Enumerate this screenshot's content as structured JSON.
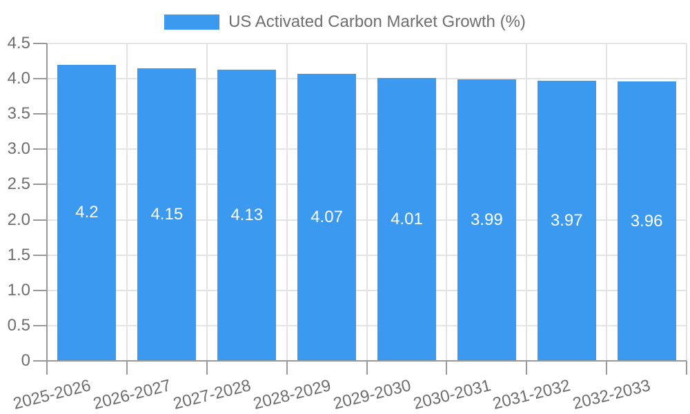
{
  "chart_data": {
    "type": "bar",
    "title": "US Activated Carbon Market Growth (%)",
    "categories": [
      "2025-2026",
      "2026-2027",
      "2027-2028",
      "2028-2029",
      "2029-2030",
      "2030-2031",
      "2031-2032",
      "2032-2033"
    ],
    "values": [
      4.2,
      4.15,
      4.13,
      4.07,
      4.01,
      3.99,
      3.97,
      3.96
    ],
    "value_labels": [
      "4.2",
      "4.15",
      "4.13",
      "4.07",
      "4.01",
      "3.99",
      "3.97",
      "3.96"
    ],
    "xlabel": "",
    "ylabel": "",
    "ylim": [
      0,
      4.5
    ],
    "yticks": [
      0,
      0.5,
      1,
      1.5,
      2,
      2.5,
      3,
      3.5,
      4,
      4.5
    ],
    "ytick_labels": [
      "0",
      "0.5",
      "1.0",
      "1.5",
      "2.0",
      "2.5",
      "3.0",
      "3.5",
      "4.0",
      "4.5"
    ],
    "grid": true,
    "legend_position": "top",
    "colors": {
      "bar": "#3b9af0",
      "text": "#6e6e6e",
      "grid": "#e3e3e3",
      "axis": "#999999",
      "value_label": "#ffffff",
      "background": "#ffffff"
    }
  }
}
